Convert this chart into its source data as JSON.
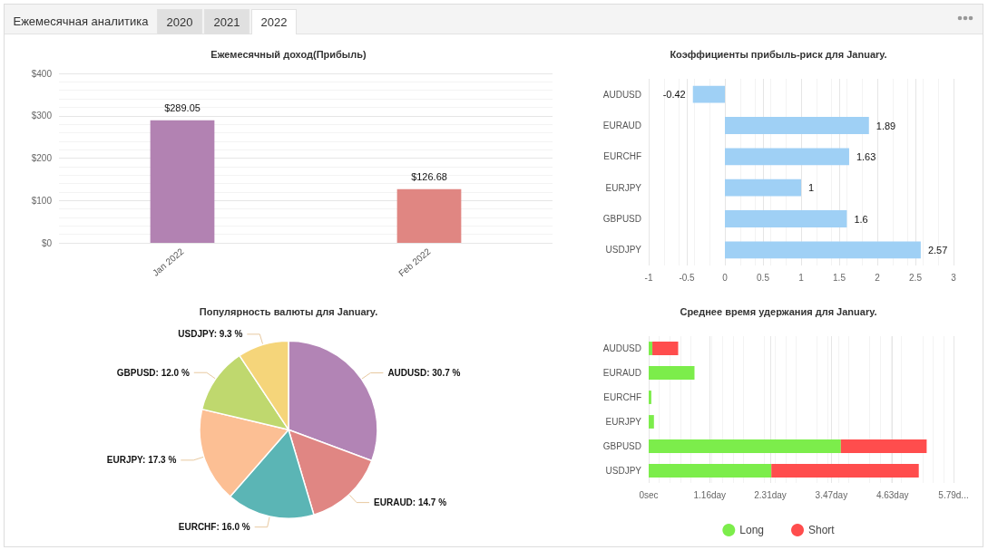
{
  "chart_data": [
    {
      "type": "bar",
      "title": "Ежемесячный доход(Прибыль)",
      "annotations": [
        "Ежемесячная аналитика",
        "2020",
        "2021",
        "2022"
      ],
      "categories": [
        "Jan 2022",
        "Feb 2022"
      ],
      "values": [
        289.05,
        126.68
      ],
      "colors": [
        "#b282b2",
        "#e08682"
      ],
      "value_labels": [
        "$289.05",
        "$126.68"
      ],
      "ylim": [
        0,
        400
      ],
      "yticks": [
        {
          "value": 0,
          "label": "$0"
        },
        {
          "value": 100,
          "label": "$100"
        },
        {
          "value": 200,
          "label": "$200"
        },
        {
          "value": 300,
          "label": "$300"
        },
        {
          "value": 400,
          "label": "$400"
        }
      ],
      "grid": "y"
    },
    {
      "type": "bar",
      "orientation": "horizontal",
      "title": "Коэффициенты прибыль-риск для January.",
      "categories": [
        "AUDUSD",
        "EURAUD",
        "EURCHF",
        "EURJPY",
        "GBPUSD",
        "USDJPY"
      ],
      "values": [
        -0.42,
        1.89,
        1.63,
        1,
        1.6,
        2.57
      ],
      "color": "#9fd0f5",
      "data_labels": true,
      "xlim": [
        -1,
        3
      ],
      "xticks": [
        -1,
        -0.5,
        0,
        0.5,
        1,
        1.5,
        2,
        2.5,
        3
      ],
      "grid": "x"
    },
    {
      "type": "pie",
      "title": "Популярность валюты для January.",
      "categories": [
        "AUDUSD",
        "EURAUD",
        "EURCHF",
        "EURJPY",
        "GBPUSD",
        "USDJPY"
      ],
      "values": [
        30.7,
        14.7,
        16.0,
        17.3,
        12.0,
        9.3
      ],
      "colors": [
        "#b284b5",
        "#e08683",
        "#5bb5b5",
        "#fcbf94",
        "#bfd86e",
        "#f5d57a"
      ],
      "value_labels": [
        "30.7 %",
        "14.7 %",
        "16.0 %",
        "17.3 %",
        "12.0 %",
        "9.3 %"
      ]
    },
    {
      "type": "bar",
      "orientation": "horizontal",
      "stacked": true,
      "title": "Среднее время удержания для January.",
      "categories": [
        "AUDUSD",
        "EURAUD",
        "EURCHF",
        "EURJPY",
        "GBPUSD",
        "USDJPY"
      ],
      "series": [
        {
          "name": "Long",
          "color": "#7ced4b",
          "values": [
            0.07,
            0.87,
            0.05,
            0.1,
            3.65,
            2.33
          ]
        },
        {
          "name": "Short",
          "color": "#ff4d4d",
          "values": [
            0.49,
            null,
            null,
            null,
            1.63,
            2.8
          ]
        }
      ],
      "xlim": [
        0,
        5.79
      ],
      "xticks": [
        {
          "value": 0,
          "label": "0sec"
        },
        {
          "value": 1.16,
          "label": "1.16day"
        },
        {
          "value": 2.31,
          "label": "2.31day"
        },
        {
          "value": 3.47,
          "label": "3.47day"
        },
        {
          "value": 4.63,
          "label": "4.63day"
        },
        {
          "value": 5.79,
          "label": "5.79d..."
        }
      ],
      "grid": "x",
      "legend": "bottom"
    }
  ]
}
